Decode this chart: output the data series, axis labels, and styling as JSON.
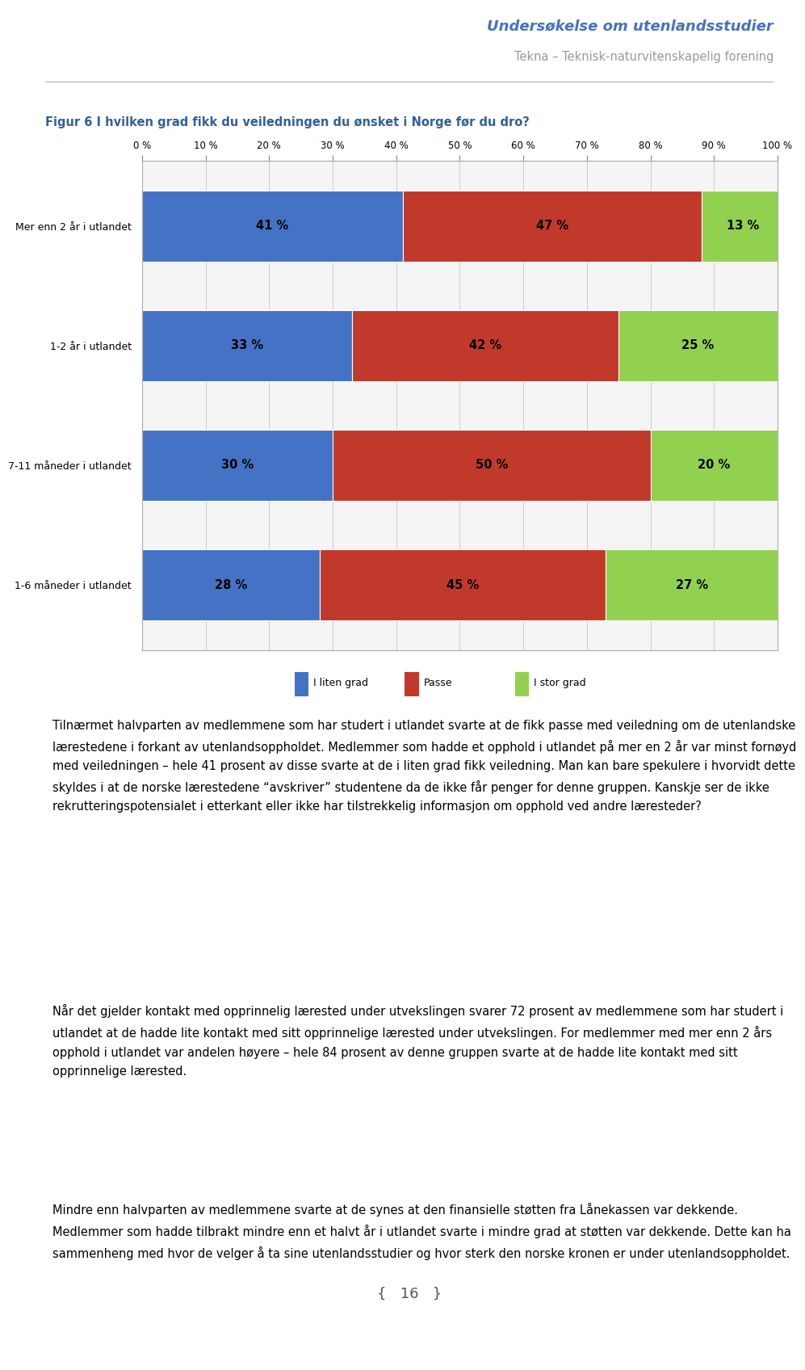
{
  "title_top1": "Undersøkelse om utenlandsstudier",
  "title_top2": "Tekna – Teknisk-naturvitenskapelig forening",
  "fig_title": "Figur 6 I hvilken grad fikk du veiledningen du ønsket i Norge før du dro?",
  "categories": [
    "Mer enn 2 år i utlandet",
    "1-2 år i utlandet",
    "7-11 måneder i utlandet",
    "1-6 måneder i utlandet"
  ],
  "i_liten_grad": [
    41,
    33,
    30,
    28
  ],
  "passe": [
    47,
    42,
    50,
    45
  ],
  "i_stor_grad": [
    13,
    25,
    20,
    27
  ],
  "color_blue": "#4472C4",
  "color_red": "#C0392B",
  "color_green": "#92D050",
  "legend_labels": [
    "I liten grad",
    "Passe",
    "I stor grad"
  ],
  "body_text1": "Tilnærmet halvparten av medlemmene som har studert i utlandet svarte at de fikk passe med veiledning om de utenlandske lærestedene i forkant av utenlandsoppholdet. Medlemmer som hadde et opphold i utlandet på mer en 2 år var minst fornøyd med veiledningen – hele 41 prosent av disse svarte at de i liten grad fikk veiledning. Man kan bare spekulere i hvorvidt dette skyldes i at de norske lærestedene “avskriver” studentene da de ikke får penger for denne gruppen. Kanskje ser de ikke rekrutteringspotensialet i etterkant eller ikke har tilstrekkelig informasjon om opphold ved andre læresteder?",
  "body_text2": "Når det gjelder kontakt med opprinnelig lærested under utvekslingen svarer 72 prosent av medlemmene som har studert i utlandet at de hadde lite kontakt med sitt opprinnelige lærested under utvekslingen. For medlemmer med mer enn 2 års opphold i utlandet var andelen høyere – hele 84 prosent av denne gruppen svarte at de hadde lite kontakt med sitt opprinnelige lærested.",
  "body_text3": "Mindre enn halvparten av medlemmene svarte at de synes at den finansielle støtten fra Lånekassen var dekkende. Medlemmer som hadde tilbrakt mindre enn et halvt år i utlandet svarte i mindre grad at støtten var dekkende. Dette kan ha sammenheng med hvor de velger å ta sine utenlandsstudier og hvor sterk den norske kronen er under utenlandsoppholdet.",
  "page_number": "16",
  "header_line_color": "#aaaaaa",
  "chart_border_color": "#aaaaaa",
  "grid_color": "#cccccc",
  "chart_bg_color": "#f5f5f5"
}
